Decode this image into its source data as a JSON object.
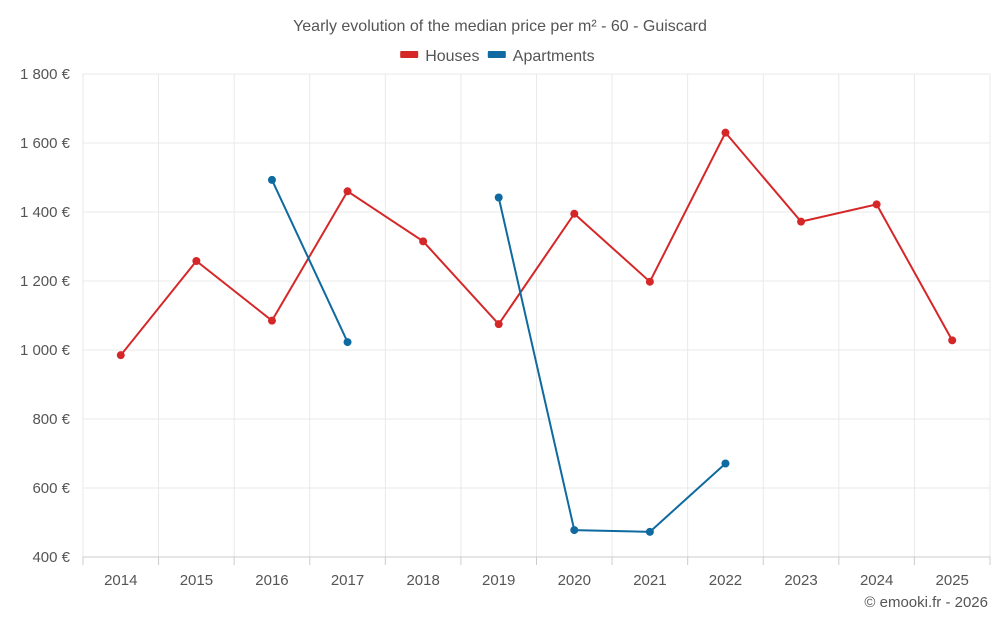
{
  "chart_data": {
    "type": "line",
    "title": "Yearly evolution of the median price per m² - 60 - Guiscard",
    "xlabel": "",
    "ylabel": "",
    "categories": [
      "2014",
      "2015",
      "2016",
      "2017",
      "2018",
      "2019",
      "2020",
      "2021",
      "2022",
      "2023",
      "2024",
      "2025"
    ],
    "ylim": [
      400,
      1800
    ],
    "yticks": [
      400,
      600,
      800,
      1000,
      1200,
      1400,
      1600,
      1800
    ],
    "ytick_labels": [
      "400 €",
      "600 €",
      "800 €",
      "1 000 €",
      "1 200 €",
      "1 400 €",
      "1 600 €",
      "1 800 €"
    ],
    "grid": true,
    "legend_position": "top-center",
    "series": [
      {
        "name": "Houses",
        "color": "#d62728",
        "values": [
          985,
          1258,
          1085,
          1460,
          1315,
          1075,
          1395,
          1198,
          1630,
          1372,
          1422,
          1028
        ]
      },
      {
        "name": "Apartments",
        "color": "#0e6aa0",
        "values": [
          null,
          null,
          1493,
          1023,
          null,
          1442,
          478,
          473,
          671,
          null,
          null,
          null
        ]
      }
    ]
  },
  "footer": "© emooki.fr - 2026"
}
